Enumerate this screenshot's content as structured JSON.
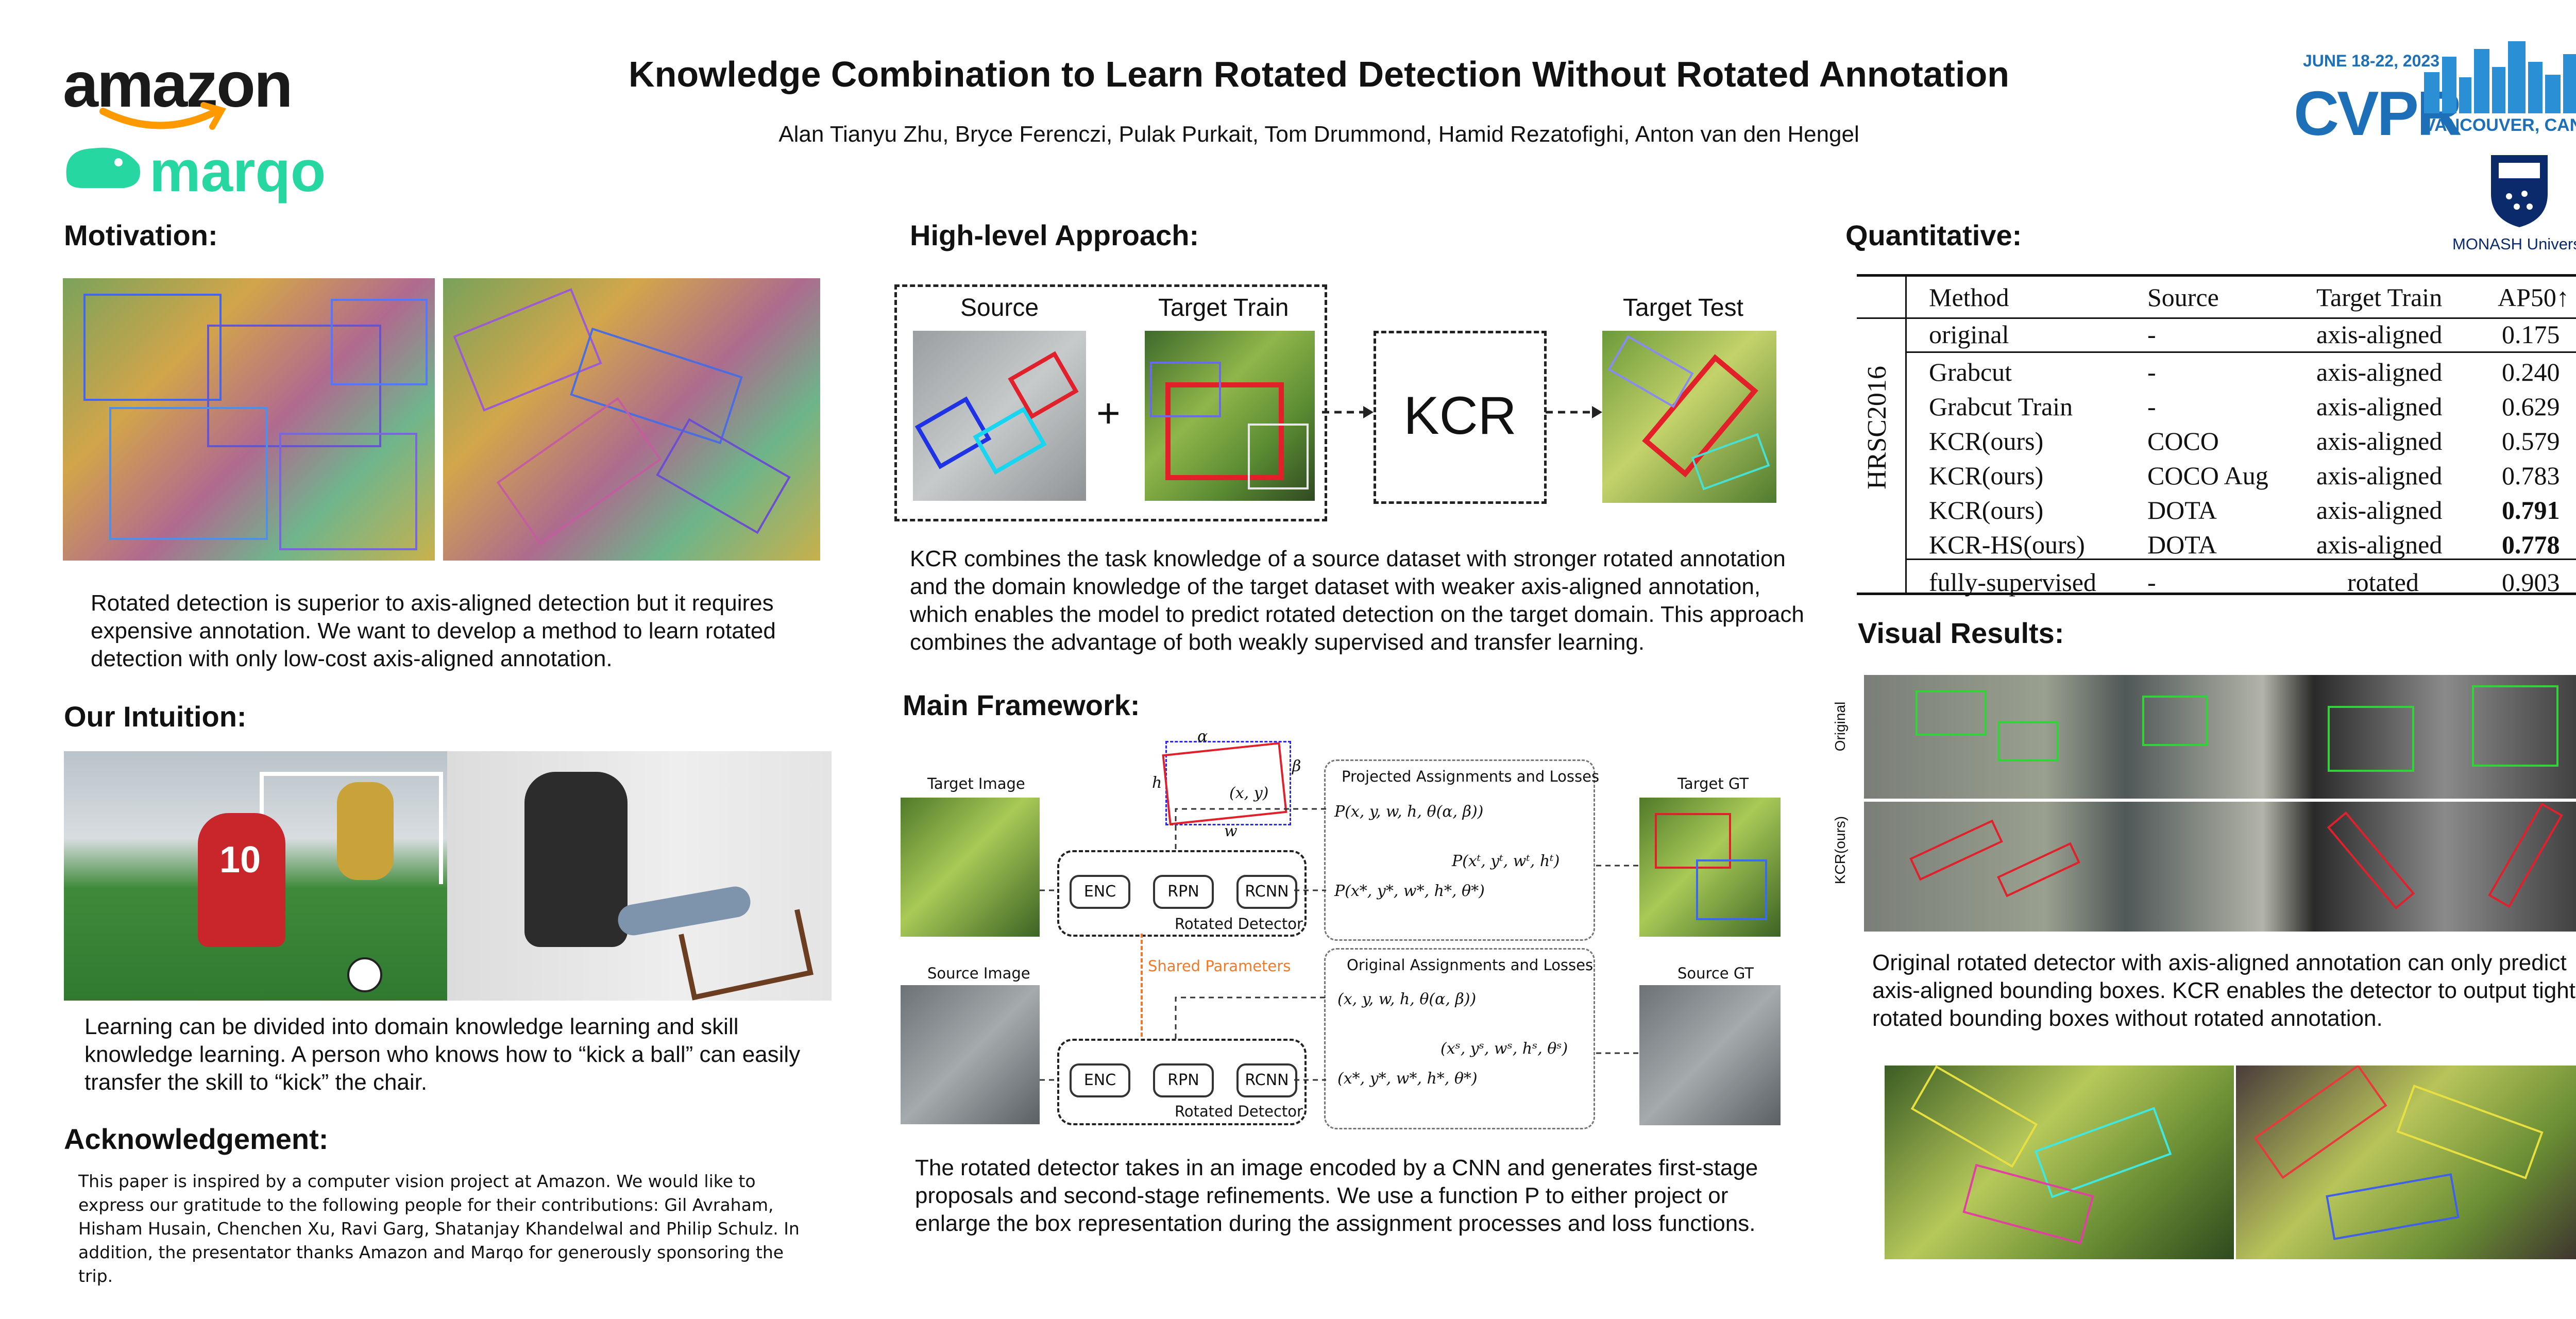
{
  "header": {
    "title": "Knowledge Combination to Learn Rotated Detection Without Rotated Annotation",
    "authors": "Alan Tianyu Zhu, Bryce Ferenczi, Pulak Purkait, Tom Drummond, Hamid Rezatofighi, Anton van den Hengel"
  },
  "logos": {
    "amazon": "amazon",
    "marqo": "marqo",
    "cvpr_date": "JUNE 18-22, 2023",
    "cvpr": "CVPR",
    "cvpr_place": "VANCOUVER, CANADA",
    "monash": "MONASH University",
    "amazon_color": "#ff9900",
    "marqo_color": "#27d7a1",
    "cvpr_color": "#1d6fb8",
    "monash_color": "#0b2a6b"
  },
  "motivation": {
    "heading": "Motivation:",
    "text": "Rotated detection is superior to axis-aligned detection but it requires expensive annotation. We want to develop a method to learn rotated detection with only low-cost  axis-aligned annotation."
  },
  "intuition": {
    "heading": "Our Intuition:",
    "text": "Learning can be divided into domain knowledge learning and skill knowledge learning. A person who knows how to “kick a ball” can easily transfer the skill to “kick” the chair.",
    "jersey_number": "10"
  },
  "acknowledgement": {
    "heading": "Acknowledgement:",
    "text": "This paper is inspired by a computer vision project at Amazon. We would like to express our gratitude to the following people for their contributions: Gil Avraham, Hisham Husain, Chenchen Xu, Ravi Garg, Shatanjay Khandelwal and Philip Schulz. In addition, the presentator thanks Amazon and Marqo for generously sponsoring the trip."
  },
  "approach": {
    "heading": "High-level Approach:",
    "source_label": "Source",
    "target_train_label": "Target Train",
    "plus": "+",
    "kcr_label": "KCR",
    "target_test_label": "Target Test",
    "text": "KCR combines the task knowledge of a source dataset with stronger rotated annotation and the domain knowledge of the target dataset with weaker axis-aligned annotation, which enables the model to predict rotated detection on the target domain. This approach combines the advantage of both  weakly supervised and transfer learning."
  },
  "framework": {
    "heading": "Main Framework:",
    "target_image_label": "Target Image",
    "source_image_label": "Source Image",
    "target_gt_label": "Target GT",
    "source_gt_label": "Source GT",
    "enc": "ENC",
    "rpn": "RPN",
    "rcnn": "RCNN",
    "rotated_detector": "Rotated Detector",
    "shared_parameters": "Shared Parameters",
    "projected_title": "Projected Assignments and Losses",
    "original_title": "Original Assignments and Losses",
    "f_proj_1": "P(x, y, w, h, θ(α, β))",
    "f_proj_2": "P(xᵗ, yᵗ, wᵗ, hᵗ)",
    "f_proj_3": "P(x*, y*, w*, h*, θ*)",
    "f_orig_1": "(x, y, w, h, θ(α, β))",
    "f_orig_2": "(xˢ, yˢ, wˢ, hˢ, θˢ)",
    "f_orig_3": "(x*, y*, w*, h*, θ*)",
    "box_alpha": "α",
    "box_beta": "β",
    "box_h": "h",
    "box_w": "w",
    "box_xy": "(x, y)",
    "text": "The rotated detector takes in an image encoded by a CNN and generates first-stage proposals and second-stage refinements. We use a function P to either project or enlarge the box representation during the assignment processes and loss functions."
  },
  "quantitative": {
    "heading": "Quantitative:",
    "dataset": "HRSC2016",
    "columns": [
      "Method",
      "Source",
      "Target Train",
      "AP50↑"
    ],
    "rows": [
      {
        "method": "original",
        "source": "-",
        "target": "axis-aligned",
        "ap": "0.175",
        "bold": false
      },
      {
        "method": "Grabcut",
        "source": "-",
        "target": "axis-aligned",
        "ap": "0.240",
        "bold": false
      },
      {
        "method": "Grabcut Train",
        "source": "-",
        "target": "axis-aligned",
        "ap": "0.629",
        "bold": false
      },
      {
        "method": "KCR(ours)",
        "source": "COCO",
        "target": "axis-aligned",
        "ap": "0.579",
        "bold": false
      },
      {
        "method": "KCR(ours)",
        "source": "COCO Aug",
        "target": "axis-aligned",
        "ap": "0.783",
        "bold": false
      },
      {
        "method": "KCR(ours)",
        "source": "DOTA",
        "target": "axis-aligned",
        "ap": "0.791",
        "bold": true
      },
      {
        "method": "KCR-HS(ours)",
        "source": "DOTA",
        "target": "axis-aligned",
        "ap": "0.778",
        "bold": true
      },
      {
        "method": "fully-supervised",
        "source": "-",
        "target": "rotated",
        "ap": "0.903",
        "bold": false
      }
    ]
  },
  "visual": {
    "heading": "Visual Results:",
    "row_original": "Original",
    "row_kcr": "KCR(ours)",
    "text": "Original rotated detector with axis-aligned annotation can only predict axis-aligned bounding boxes. KCR enables the detector to output tight rotated bounding boxes without rotated annotation."
  }
}
